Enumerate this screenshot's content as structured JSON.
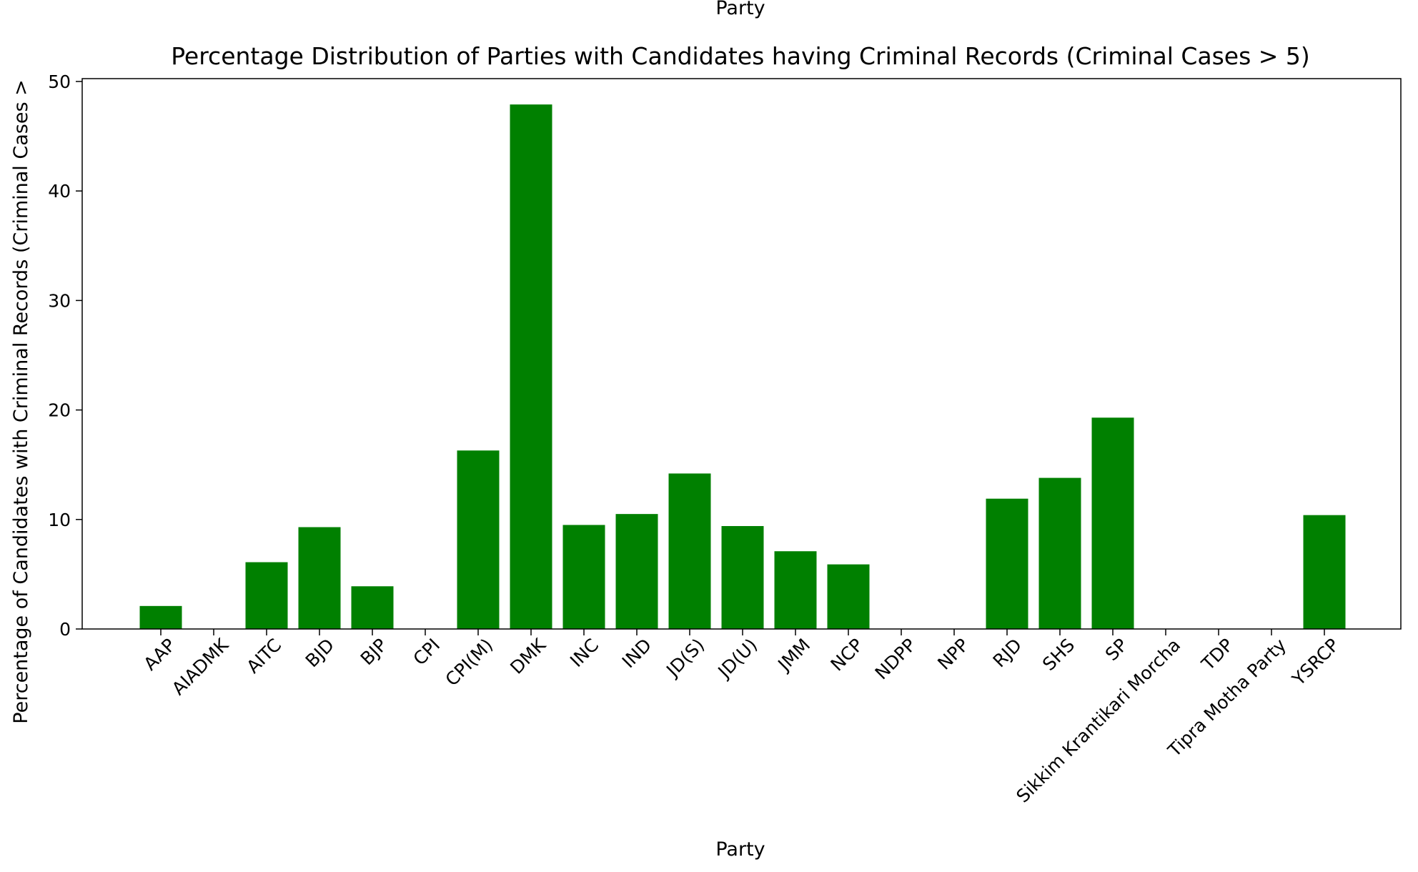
{
  "chart_data": {
    "type": "bar",
    "title": "Percentage Distribution of Parties with Candidates having Criminal Records (Criminal Cases > 5)",
    "top_label": "Party",
    "xlabel": "Party",
    "ylabel": "Percentage of Candidates with Criminal Records (Criminal Cases >",
    "ylim": [
      0,
      50
    ],
    "yticks": [
      0,
      10,
      20,
      30,
      40,
      50
    ],
    "bar_color": "#008000",
    "grid": false,
    "categories": [
      "AAP",
      "AIADMK",
      "AITC",
      "BJD",
      "BJP",
      "CPI",
      "CPI(M)",
      "DMK",
      "INC",
      "IND",
      "JD(S)",
      "JD(U)",
      "JMM",
      "NCP",
      "NDPP",
      "NPP",
      "RJD",
      "SHS",
      "SP",
      "Sikkim Krantikari Morcha",
      "TDP",
      "Tipra Motha Party",
      "YSRCP"
    ],
    "values": [
      2.1,
      0,
      6.1,
      9.3,
      3.9,
      0,
      16.3,
      47.9,
      9.5,
      10.5,
      14.2,
      9.4,
      7.1,
      5.9,
      0,
      0,
      11.9,
      13.8,
      19.3,
      0,
      0,
      0,
      10.4
    ]
  }
}
